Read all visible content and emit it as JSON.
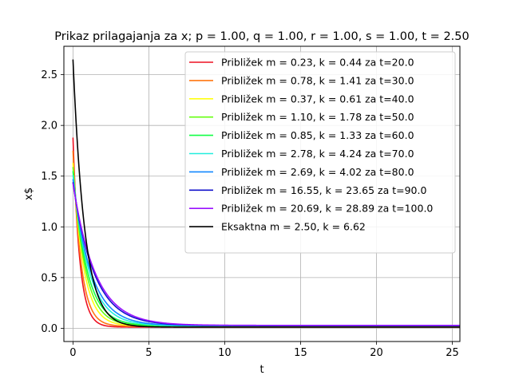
{
  "chart_data": {
    "type": "line",
    "title": "Prikaz prilagajanja za x; p = 1.00, q = 1.00, r = 1.00, s = 1.00, t = 2.50",
    "xlabel": "t",
    "ylabel": "x$",
    "xlim": [
      -0.6,
      25.5
    ],
    "ylim": [
      -0.13,
      2.78
    ],
    "xticks": [
      0,
      5,
      10,
      15,
      20,
      25
    ],
    "yticks": [
      0.0,
      0.5,
      1.0,
      1.5,
      2.0,
      2.5
    ],
    "xtick_labels": [
      "0",
      "5",
      "10",
      "15",
      "20",
      "25"
    ],
    "ytick_labels": [
      "0.0",
      "0.5",
      "1.0",
      "1.5",
      "2.0",
      "2.5"
    ],
    "grid": true,
    "legend_position": "top-right",
    "series": [
      {
        "name": "Približek m = 0.23, k = 0.44 za t=20.0",
        "color": "#ee1122",
        "y0": 1.88,
        "k": 2.3,
        "tail": 0.012
      },
      {
        "name": "Približek m = 0.78, k = 1.41 za t=30.0",
        "color": "#ff7711",
        "y0": 1.75,
        "k": 1.9,
        "tail": 0.02
      },
      {
        "name": "Približek m = 0.37, k = 0.61 za t=40.0",
        "color": "#ffff11",
        "y0": 1.63,
        "k": 1.45,
        "tail": 0.022
      },
      {
        "name": "Približek m = 1.10, k = 1.78 za t=50.0",
        "color": "#66ff11",
        "y0": 1.59,
        "k": 1.25,
        "tail": 0.024
      },
      {
        "name": "Približek m = 0.85, k = 1.33 za t=60.0",
        "color": "#11ff44",
        "y0": 1.55,
        "k": 1.1,
        "tail": 0.025
      },
      {
        "name": "Približek m = 2.78, k = 4.24 za t=70.0",
        "color": "#22eedd",
        "y0": 1.51,
        "k": 0.95,
        "tail": 0.026
      },
      {
        "name": "Približek m = 2.69, k = 4.02 za t=80.0",
        "color": "#1188ff",
        "y0": 1.47,
        "k": 0.85,
        "tail": 0.027
      },
      {
        "name": "Približek m = 16.55, k = 23.65 za t=90.0",
        "color": "#1111cc",
        "y0": 1.44,
        "k": 0.72,
        "tail": 0.028
      },
      {
        "name": "Približek m = 20.69, k = 28.89 za t=100.0",
        "color": "#9911ff",
        "y0": 1.43,
        "k": 0.68,
        "tail": 0.029
      },
      {
        "name": "Eksaktna m = 2.50, k = 6.62",
        "color": "#000000",
        "y0": 2.65,
        "k": 1.3,
        "tail": 0.012
      }
    ]
  }
}
